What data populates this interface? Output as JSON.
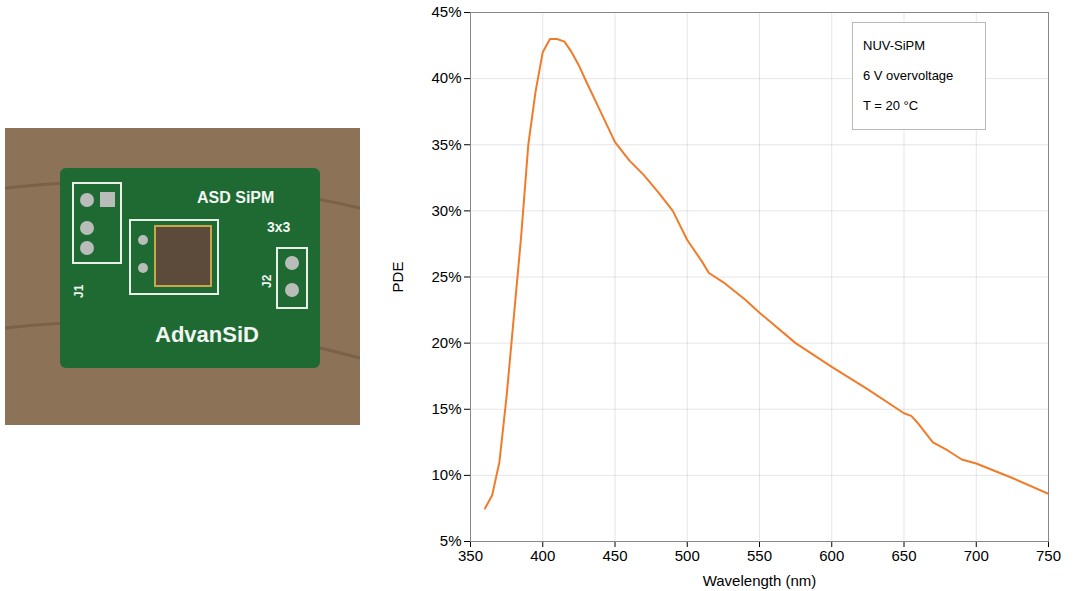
{
  "chart_data": {
    "type": "line",
    "x": [
      360,
      365,
      370,
      375,
      380,
      385,
      390,
      395,
      400,
      405,
      410,
      415,
      420,
      425,
      430,
      440,
      450,
      460,
      470,
      480,
      490,
      500,
      510,
      515,
      525,
      540,
      550,
      575,
      600,
      625,
      650,
      655,
      660,
      670,
      680,
      690,
      700,
      725,
      750
    ],
    "values": [
      7.5,
      8.5,
      11,
      16,
      22,
      28,
      35,
      39,
      42,
      43,
      43,
      42.8,
      42,
      41,
      39.8,
      37.5,
      35.2,
      33.8,
      32.7,
      31.4,
      30,
      27.8,
      26.2,
      25.3,
      24.6,
      23.3,
      22.3,
      20,
      18.2,
      16.5,
      14.7,
      14.5,
      13.9,
      12.5,
      11.9,
      11.2,
      10.9,
      9.8,
      8.6
    ],
    "color": "#f07c2a",
    "x_label": "Wavelength (nm)",
    "y_label": "PDE",
    "xlim": [
      350,
      750
    ],
    "xticks": [
      350,
      400,
      450,
      500,
      550,
      600,
      650,
      700,
      750
    ],
    "ylim": [
      5,
      45
    ],
    "yticks": [
      {
        "value": 5,
        "label": "5%"
      },
      {
        "value": 10,
        "label": "10%"
      },
      {
        "value": 15,
        "label": "15%"
      },
      {
        "value": 20,
        "label": "20%"
      },
      {
        "value": 25,
        "label": "25%"
      },
      {
        "value": 30,
        "label": "30%"
      },
      {
        "value": 35,
        "label": "35%"
      },
      {
        "value": 40,
        "label": "40%"
      },
      {
        "value": 45,
        "label": "45%"
      }
    ],
    "grid": true,
    "annotations": [
      "NUV-SiPM",
      "6 V overvoltage",
      "T = 20 °C"
    ]
  },
  "photo": {
    "texts": [
      "ASD SiPM",
      "3x3",
      "J2",
      "J1",
      "AdvanSiD"
    ]
  }
}
